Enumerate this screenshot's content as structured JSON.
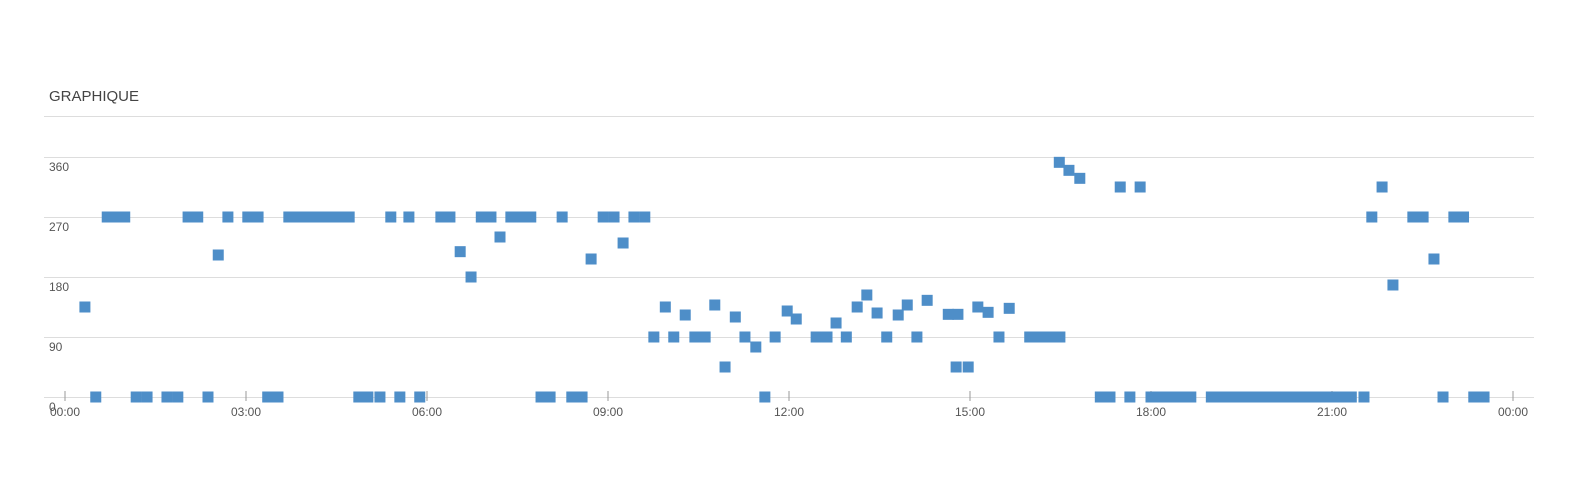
{
  "chart_data": {
    "type": "scatter",
    "title": "GRAPHIQUE",
    "color": "#4e8ec8",
    "grid": true,
    "x": [
      0.33,
      0.51,
      0.7,
      0.83,
      0.99,
      1.18,
      1.36,
      1.69,
      1.87,
      2.04,
      2.2,
      2.37,
      2.54,
      2.7,
      3.03,
      3.2,
      3.36,
      3.53,
      3.71,
      3.88,
      4.04,
      4.21,
      4.38,
      4.54,
      4.71,
      4.87,
      5.02,
      5.22,
      5.4,
      5.55,
      5.7,
      5.88,
      6.23,
      6.38,
      6.55,
      6.73,
      6.9,
      7.06,
      7.21,
      7.39,
      7.56,
      7.72,
      7.89,
      8.04,
      8.24,
      8.4,
      8.57,
      8.72,
      8.92,
      9.1,
      9.25,
      9.43,
      9.61,
      9.76,
      9.95,
      10.09,
      10.28,
      10.44,
      10.61,
      10.77,
      10.94,
      11.11,
      11.27,
      11.45,
      11.6,
      11.77,
      11.97,
      12.12,
      12.45,
      12.63,
      12.78,
      12.95,
      13.13,
      13.29,
      13.46,
      13.62,
      13.81,
      13.96,
      14.12,
      14.29,
      14.64,
      14.8,
      14.77,
      14.97,
      15.13,
      15.3,
      15.48,
      15.65,
      15.99,
      16.16,
      16.33,
      16.49,
      16.48,
      16.64,
      16.82,
      17.16,
      17.32,
      17.49,
      17.65,
      17.82,
      18.0,
      18.17,
      18.33,
      18.5,
      18.66,
      19.0,
      19.16,
      19.33,
      19.49,
      19.66,
      19.82,
      19.99,
      20.16,
      20.32,
      20.49,
      20.65,
      20.82,
      20.98,
      21.15,
      21.32,
      21.53,
      21.66,
      21.83,
      22.01,
      22.34,
      22.51,
      22.69,
      22.84,
      23.02,
      23.18,
      23.35,
      23.52
    ],
    "values": [
      135,
      0,
      270,
      270,
      270,
      0,
      0,
      0,
      0,
      270,
      270,
      0,
      213,
      270,
      270,
      270,
      0,
      0,
      270,
      270,
      270,
      270,
      270,
      270,
      270,
      0,
      0,
      0,
      270,
      0,
      270,
      0,
      270,
      270,
      218,
      180,
      270,
      270,
      240,
      270,
      270,
      270,
      0,
      0,
      270,
      0,
      0,
      207,
      270,
      270,
      231,
      270,
      270,
      90,
      135,
      90,
      123,
      90,
      90,
      138,
      45,
      120,
      90,
      75,
      0,
      90,
      129,
      117,
      90,
      90,
      111,
      90,
      135,
      153,
      126,
      90,
      123,
      138,
      90,
      145,
      124,
      124,
      45,
      45,
      135,
      127,
      90,
      133,
      90,
      90,
      90,
      90,
      352,
      340,
      328,
      0,
      0,
      315,
      0,
      315,
      0,
      0,
      0,
      0,
      0,
      0,
      0,
      0,
      0,
      0,
      0,
      0,
      0,
      0,
      0,
      0,
      0,
      0,
      0,
      0,
      0,
      270,
      315,
      168,
      270,
      270,
      207,
      0,
      270,
      270,
      0,
      0
    ],
    "xlim": [
      0,
      24
    ],
    "xticks": [
      {
        "value": 0,
        "label": "00:00"
      },
      {
        "value": 3,
        "label": "03:00"
      },
      {
        "value": 6,
        "label": "06:00"
      },
      {
        "value": 9,
        "label": "09:00"
      },
      {
        "value": 12,
        "label": "12:00"
      },
      {
        "value": 15,
        "label": "15:00"
      },
      {
        "value": 18,
        "label": "18:00"
      },
      {
        "value": 21,
        "label": "21:00"
      },
      {
        "value": 24,
        "label": "00:00"
      }
    ],
    "ylim": [
      0,
      360
    ],
    "yticks": [
      0,
      90,
      180,
      270,
      360
    ]
  }
}
